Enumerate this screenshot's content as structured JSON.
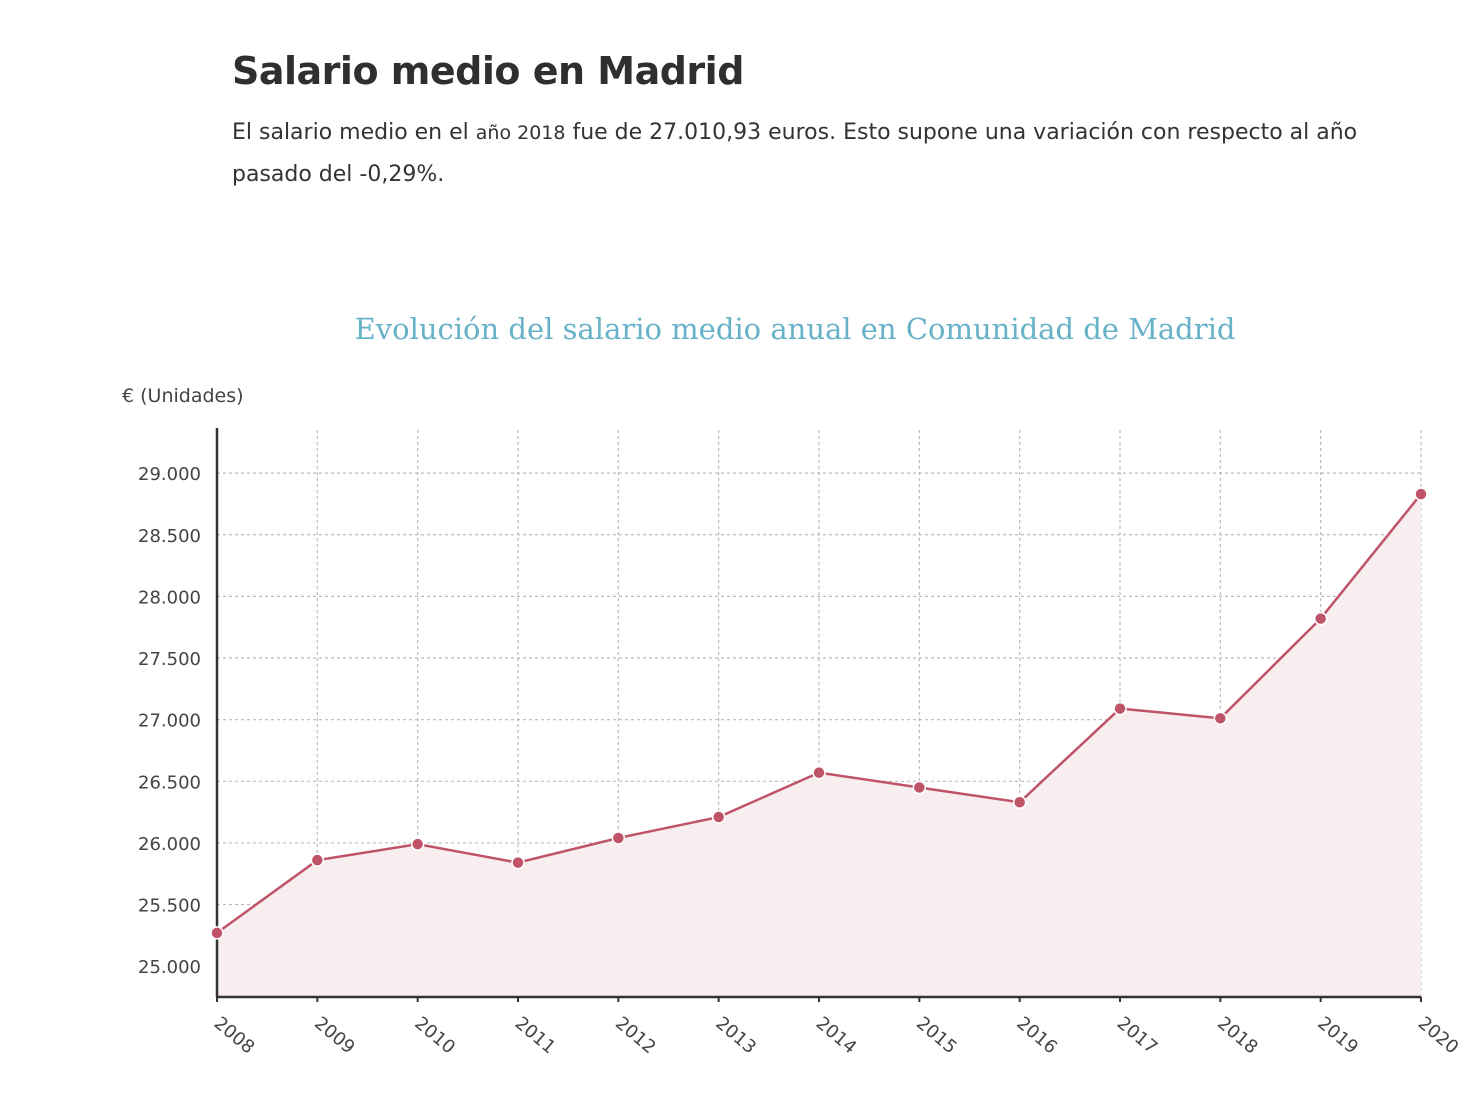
{
  "page": {
    "title": "Salario medio en Madrid",
    "intro": {
      "part1": "El salario medio en el ",
      "year_phrase": "año 2018",
      "part2": " fue de 27.010,93 euros. Esto supone una variación con respecto al año pasado del -0,29%."
    }
  },
  "colors": {
    "title": "#67b2c9",
    "line": "#bf5367",
    "area": "#f8eef0",
    "grid": "#bbbbbb",
    "axis": "#333333"
  },
  "chart_data": {
    "type": "area",
    "title": "Evolución del salario medio anual en Comunidad de Madrid",
    "ylabel": "€ (Unidades)",
    "xlabel": "",
    "categories": [
      "2008",
      "2009",
      "2010",
      "2011",
      "2012",
      "2013",
      "2014",
      "2015",
      "2016",
      "2017",
      "2018",
      "2019",
      "2020"
    ],
    "series": [
      {
        "values": [
          25270,
          25860,
          25990,
          25840,
          26040,
          26210,
          26570,
          26450,
          26330,
          27090,
          27010.93,
          27820,
          28830
        ]
      }
    ],
    "ylim": [
      24750,
      29350
    ],
    "yticks": [
      25000,
      25500,
      26000,
      26500,
      27000,
      27500,
      28000,
      28500,
      29000
    ],
    "ytick_labels": [
      "25.000",
      "25.500",
      "26.000",
      "26.500",
      "27.000",
      "27.500",
      "28.000",
      "28.500",
      "29.000"
    ],
    "grid": true,
    "legend": "none"
  }
}
